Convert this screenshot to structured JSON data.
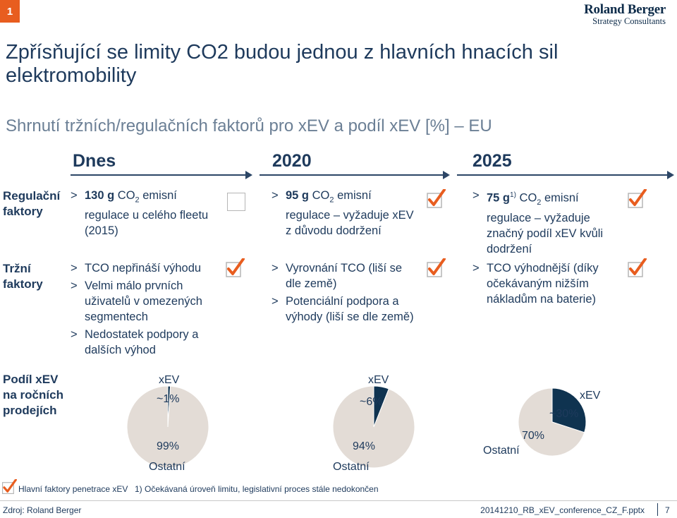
{
  "header": {
    "page_number": "1",
    "logo_line1": "Roland Berger",
    "logo_line2": "Strategy Consultants"
  },
  "title": "Zpřísňující se limity CO2 budou jednou z hlavních hnacích sil elektromobility",
  "subtitle": "Shrnutí tržních/regulačních faktorů pro xEV a podíl xEV [%] – EU",
  "columns": [
    "Dnes",
    "2020",
    "2025"
  ],
  "rows": {
    "regulatory": {
      "label_line1": "Regulační",
      "label_line2": "faktory",
      "dnes": {
        "bold": "130 g",
        "text": " CO",
        "sub": "2",
        "rest1": " emisní",
        "line2": "regulace u celého fleetu",
        "line3": "(2015)",
        "check": false
      },
      "y2020": {
        "bold": "95 g",
        "text": " CO",
        "sub": "2",
        "rest1": " emisní",
        "line2": "regulace – vyžaduje xEV",
        "line3": "z důvodu dodržení",
        "check": true
      },
      "y2025": {
        "bold": "75 g",
        "sup": "1)",
        "text": " CO",
        "sub": "2",
        "rest1": " emisní",
        "line2": "regulace – vyžaduje",
        "line3": "značný podíl xEV kvůli",
        "line4": "dodržení",
        "check": true
      }
    },
    "market": {
      "label_line1": "Tržní",
      "label_line2": "faktory",
      "dnes": {
        "items": [
          {
            "lines": [
              "TCO nepřináší výhodu"
            ]
          },
          {
            "lines": [
              "Velmi málo prvních",
              "uživatelů v omezených",
              "segmentech"
            ]
          },
          {
            "lines": [
              "Nedostatek podpory a",
              "dalších výhod"
            ]
          }
        ],
        "check": true
      },
      "y2020": {
        "items": [
          {
            "lines": [
              "Vyrovnání TCO (liší se",
              "dle země)"
            ]
          },
          {
            "lines": [
              "Potenciální podpora a",
              "výhody (liší se dle země)"
            ]
          }
        ],
        "check": true
      },
      "y2025": {
        "items": [
          {
            "lines": [
              "TCO výhodnější (díky",
              "očekávaným nižším",
              "nákladům na baterie)"
            ]
          }
        ],
        "check": true
      }
    },
    "share": {
      "label_line1": "Podíl xEV",
      "label_line2": "na ročních",
      "label_line3": "prodejích",
      "dnes": {
        "xev_label": "xEV",
        "xev_value": "~1%",
        "other_value": "99%",
        "other_label": "Ostatní"
      },
      "y2020": {
        "xev_label": "xEV",
        "xev_value": "~6%",
        "other_value": "94%",
        "other_label": "Ostatní"
      },
      "y2025": {
        "xev_label": "xEV",
        "xev_value": "~30%",
        "other_value": "70%",
        "other_label": "Ostatní"
      }
    }
  },
  "chart_data": [
    {
      "type": "pie",
      "title": "Dnes",
      "categories": [
        "xEV",
        "Ostatní"
      ],
      "values": [
        1,
        99
      ]
    },
    {
      "type": "pie",
      "title": "2020",
      "categories": [
        "xEV",
        "Ostatní"
      ],
      "values": [
        6,
        94
      ]
    },
    {
      "type": "pie",
      "title": "2025",
      "categories": [
        "xEV",
        "Ostatní"
      ],
      "values": [
        30,
        70
      ]
    }
  ],
  "colors": {
    "navy": "#1e3a5c",
    "orange": "#e85d1f",
    "pie_other": "#e3dcd6",
    "pie_xev": "#0f3350",
    "arrow": "#2c4666"
  },
  "footer": {
    "legend_text": "Hlavní faktory penetrace xEV",
    "footnote": "1) Očekávaná úroveň limitu, legislativní proces stále nedokončen",
    "source": "Zdroj: Roland Berger",
    "filename": "20141210_RB_xEV_conference_CZ_F.pptx",
    "page": "7"
  }
}
